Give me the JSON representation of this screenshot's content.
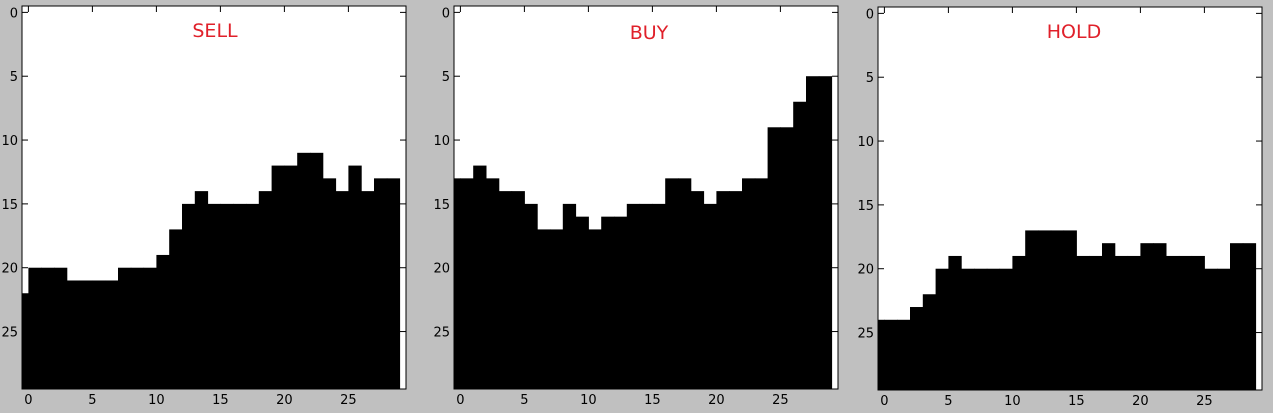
{
  "chart_data": [
    {
      "type": "area",
      "title": "SELL",
      "xlabel": "",
      "ylabel": "",
      "xlim": [
        0,
        30
      ],
      "ylim": [
        30,
        0
      ],
      "xticks": [
        0,
        5,
        10,
        15,
        20,
        25
      ],
      "yticks": [
        0,
        5,
        10,
        15,
        20,
        25
      ],
      "grid": false,
      "colors": {
        "fill": "#000000",
        "background": "#ffffff",
        "title": "#e0202a"
      },
      "x": [
        0,
        1,
        2,
        3,
        4,
        5,
        6,
        7,
        8,
        9,
        10,
        11,
        12,
        13,
        14,
        15,
        16,
        17,
        18,
        19,
        20,
        21,
        22,
        23,
        24,
        25,
        26,
        27,
        28,
        29
      ],
      "values": [
        23,
        21,
        21,
        21,
        22,
        22,
        22,
        22,
        21,
        21,
        21,
        20,
        18,
        16,
        15,
        16,
        16,
        16,
        16,
        15,
        13,
        13,
        12,
        12,
        14,
        15,
        13,
        15,
        14,
        14
      ]
    },
    {
      "type": "area",
      "title": "BUY",
      "xlabel": "",
      "ylabel": "",
      "xlim": [
        0,
        30
      ],
      "ylim": [
        30,
        0
      ],
      "xticks": [
        0,
        5,
        10,
        15,
        20,
        25
      ],
      "yticks": [
        0,
        5,
        10,
        15,
        20,
        25
      ],
      "grid": false,
      "colors": {
        "fill": "#000000",
        "background": "#ffffff",
        "title": "#e0202a"
      },
      "x": [
        0,
        1,
        2,
        3,
        4,
        5,
        6,
        7,
        8,
        9,
        10,
        11,
        12,
        13,
        14,
        15,
        16,
        17,
        18,
        19,
        20,
        21,
        22,
        23,
        24,
        25,
        26,
        27,
        28,
        29
      ],
      "values": [
        14,
        14,
        13,
        14,
        15,
        15,
        16,
        18,
        18,
        16,
        17,
        18,
        17,
        17,
        16,
        16,
        16,
        14,
        14,
        15,
        16,
        15,
        15,
        14,
        14,
        10,
        10,
        8,
        6,
        6
      ]
    },
    {
      "type": "area",
      "title": "HOLD",
      "xlabel": "",
      "ylabel": "",
      "xlim": [
        0,
        30
      ],
      "ylim": [
        30,
        0
      ],
      "xticks": [
        0,
        5,
        10,
        15,
        20,
        25
      ],
      "yticks": [
        0,
        5,
        10,
        15,
        20,
        25
      ],
      "grid": false,
      "colors": {
        "fill": "#000000",
        "background": "#ffffff",
        "title": "#e0202a"
      },
      "x": [
        0,
        1,
        2,
        3,
        4,
        5,
        6,
        7,
        8,
        9,
        10,
        11,
        12,
        13,
        14,
        15,
        16,
        17,
        18,
        19,
        20,
        21,
        22,
        23,
        24,
        25,
        26,
        27,
        28,
        29
      ],
      "values": [
        25,
        25,
        25,
        24,
        23,
        21,
        20,
        21,
        21,
        21,
        21,
        20,
        18,
        18,
        18,
        18,
        20,
        20,
        19,
        20,
        20,
        19,
        19,
        20,
        20,
        20,
        21,
        21,
        19,
        19
      ]
    }
  ]
}
